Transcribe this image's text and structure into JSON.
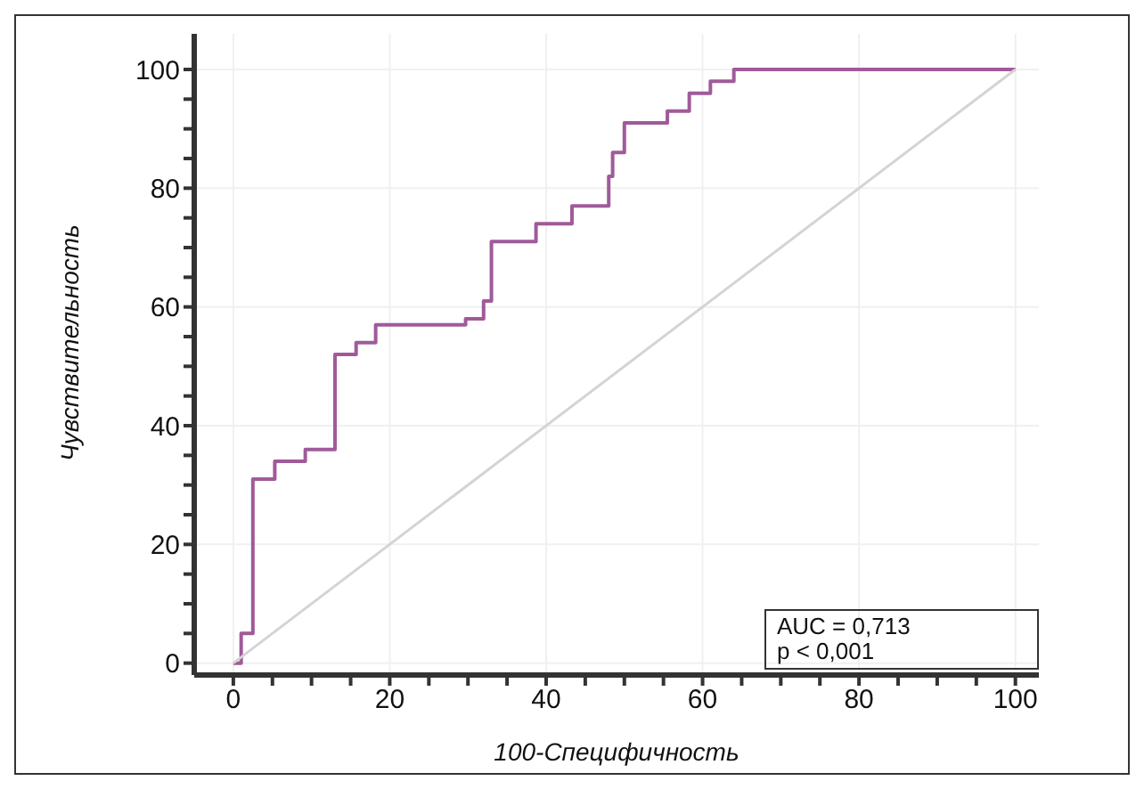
{
  "chart_data": {
    "type": "line",
    "xlabel": "100-Специфичность",
    "ylabel": "Чувствительность",
    "xlim": [
      -5,
      103
    ],
    "ylim": [
      -2,
      106
    ],
    "xticks": [
      0,
      {
        "value": 5,
        "label": null
      },
      {
        "value": 10,
        "label": null
      },
      {
        "value": 15,
        "label": null
      },
      20,
      {
        "value": 25,
        "label": null
      },
      {
        "value": 30,
        "label": null
      },
      {
        "value": 35,
        "label": null
      },
      40,
      {
        "value": 45,
        "label": null
      },
      {
        "value": 50,
        "label": null
      },
      {
        "value": 55,
        "label": null
      },
      60,
      {
        "value": 65,
        "label": null
      },
      {
        "value": 70,
        "label": null
      },
      {
        "value": 75,
        "label": null
      },
      80,
      {
        "value": 85,
        "label": null
      },
      {
        "value": 90,
        "label": null
      },
      {
        "value": 95,
        "label": null
      },
      100
    ],
    "yticks": [
      0,
      {
        "value": 5,
        "label": null
      },
      {
        "value": 10,
        "label": null
      },
      {
        "value": 15,
        "label": null
      },
      20,
      {
        "value": 25,
        "label": null
      },
      {
        "value": 30,
        "label": null
      },
      {
        "value": 35,
        "label": null
      },
      40,
      {
        "value": 45,
        "label": null
      },
      {
        "value": 50,
        "label": null
      },
      {
        "value": 55,
        "label": null
      },
      60,
      {
        "value": 65,
        "label": null
      },
      {
        "value": 70,
        "label": null
      },
      {
        "value": 75,
        "label": null
      },
      80,
      {
        "value": 85,
        "label": null
      },
      {
        "value": 90,
        "label": null
      },
      {
        "value": 95,
        "label": null
      },
      100
    ],
    "grid": true,
    "legend": false,
    "marker": "none",
    "series": [
      {
        "type": "step",
        "color": "#a05a9a",
        "x": [
          0,
          1,
          2.5,
          5.3,
          9.2,
          13,
          15.7,
          18.2,
          29.7,
          32,
          33,
          37,
          38.7,
          43.3,
          48,
          48.5,
          50,
          52.8,
          55.5,
          58.3,
          61,
          64,
          100
        ],
        "values": [
          0,
          5,
          31,
          34,
          36,
          52,
          54,
          57,
          58,
          61,
          71,
          71,
          74,
          77,
          82,
          86,
          91,
          91,
          93,
          96,
          98,
          100,
          100
        ]
      },
      {
        "color": "#d4d4d4",
        "x": [
          0,
          100
        ],
        "values": [
          0,
          100
        ]
      }
    ],
    "annotations": [
      "AUC = 0,713",
      "p < 0,001"
    ]
  }
}
